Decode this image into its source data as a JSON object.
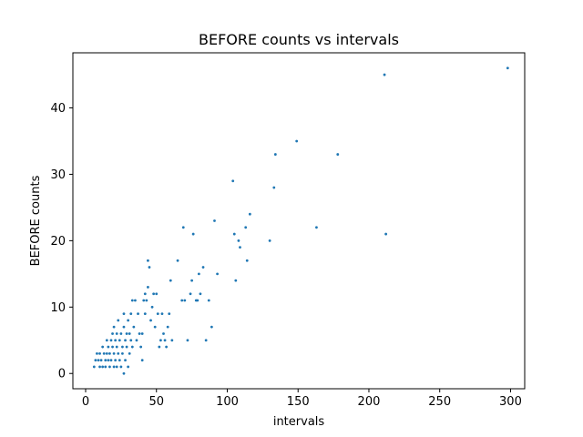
{
  "chart_data": {
    "type": "scatter",
    "title": "BEFORE counts vs intervals",
    "xlabel": "intervals",
    "ylabel": "BEFORE counts",
    "xlim": [
      -9,
      310
    ],
    "ylim": [
      -2.3,
      48.3
    ],
    "xticks": [
      0,
      50,
      100,
      150,
      200,
      250,
      300
    ],
    "yticks": [
      0,
      10,
      20,
      30,
      40
    ],
    "grid": false,
    "color": "#1f77b4",
    "points": [
      [
        6,
        1
      ],
      [
        7,
        2
      ],
      [
        8,
        3
      ],
      [
        9,
        2
      ],
      [
        10,
        1
      ],
      [
        10,
        3
      ],
      [
        11,
        2
      ],
      [
        12,
        4
      ],
      [
        12,
        1
      ],
      [
        13,
        3
      ],
      [
        14,
        2
      ],
      [
        14,
        1
      ],
      [
        15,
        3
      ],
      [
        15,
        5
      ],
      [
        16,
        4
      ],
      [
        16,
        2
      ],
      [
        17,
        1
      ],
      [
        17,
        3
      ],
      [
        18,
        5
      ],
      [
        18,
        2
      ],
      [
        19,
        4
      ],
      [
        19,
        6
      ],
      [
        20,
        1
      ],
      [
        20,
        3
      ],
      [
        20,
        7
      ],
      [
        21,
        2
      ],
      [
        21,
        5
      ],
      [
        22,
        4
      ],
      [
        22,
        6
      ],
      [
        22,
        1
      ],
      [
        23,
        3
      ],
      [
        23,
        8
      ],
      [
        24,
        2
      ],
      [
        24,
        5
      ],
      [
        25,
        6
      ],
      [
        25,
        1
      ],
      [
        26,
        4
      ],
      [
        26,
        3
      ],
      [
        27,
        9
      ],
      [
        27,
        7
      ],
      [
        27,
        0
      ],
      [
        28,
        2
      ],
      [
        28,
        5
      ],
      [
        29,
        6
      ],
      [
        29,
        4
      ],
      [
        30,
        1
      ],
      [
        30,
        8
      ],
      [
        31,
        3
      ],
      [
        31,
        6
      ],
      [
        32,
        9
      ],
      [
        32,
        5
      ],
      [
        33,
        11
      ],
      [
        33,
        4
      ],
      [
        34,
        7
      ],
      [
        35,
        11
      ],
      [
        36,
        5
      ],
      [
        37,
        9
      ],
      [
        38,
        6
      ],
      [
        39,
        4
      ],
      [
        40,
        2
      ],
      [
        40,
        6
      ],
      [
        41,
        11
      ],
      [
        42,
        12
      ],
      [
        42,
        9
      ],
      [
        43,
        11
      ],
      [
        44,
        17
      ],
      [
        44,
        13
      ],
      [
        45,
        16
      ],
      [
        46,
        8
      ],
      [
        47,
        10
      ],
      [
        48,
        12
      ],
      [
        49,
        7
      ],
      [
        50,
        12
      ],
      [
        51,
        9
      ],
      [
        52,
        4
      ],
      [
        53,
        5
      ],
      [
        54,
        9
      ],
      [
        55,
        6
      ],
      [
        56,
        5
      ],
      [
        57,
        4
      ],
      [
        58,
        7
      ],
      [
        59,
        9
      ],
      [
        60,
        14
      ],
      [
        61,
        5
      ],
      [
        65,
        17
      ],
      [
        68,
        11
      ],
      [
        69,
        22
      ],
      [
        70,
        11
      ],
      [
        72,
        5
      ],
      [
        74,
        12
      ],
      [
        75,
        14
      ],
      [
        76,
        21
      ],
      [
        78,
        11
      ],
      [
        79,
        11
      ],
      [
        80,
        15
      ],
      [
        81,
        12
      ],
      [
        83,
        16
      ],
      [
        85,
        5
      ],
      [
        87,
        11
      ],
      [
        89,
        7
      ],
      [
        91,
        23
      ],
      [
        93,
        15
      ],
      [
        104,
        29
      ],
      [
        105,
        21
      ],
      [
        106,
        14
      ],
      [
        108,
        20
      ],
      [
        109,
        19
      ],
      [
        113,
        22
      ],
      [
        114,
        17
      ],
      [
        116,
        24
      ],
      [
        130,
        20
      ],
      [
        133,
        28
      ],
      [
        134,
        33
      ],
      [
        149,
        35
      ],
      [
        163,
        22
      ],
      [
        178,
        33
      ],
      [
        211,
        45
      ],
      [
        212,
        21
      ],
      [
        298,
        46
      ]
    ]
  }
}
